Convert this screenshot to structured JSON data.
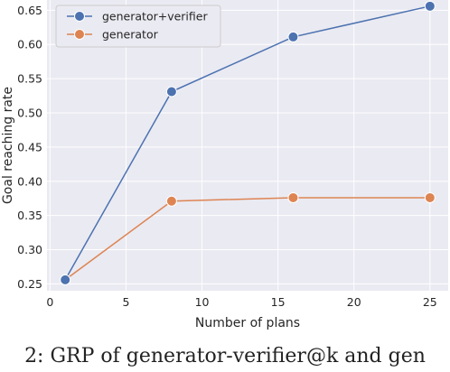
{
  "chart_data": {
    "type": "line",
    "title": "",
    "xlabel": "Number of plans",
    "ylabel": "Goal reaching rate",
    "xlim": [
      -0.2,
      26.2
    ],
    "ylim": [
      0.24,
      0.665
    ],
    "xticks": [
      0,
      5,
      10,
      15,
      20,
      25
    ],
    "yticks": [
      0.25,
      0.3,
      0.35,
      0.4,
      0.45,
      0.5,
      0.55,
      0.6,
      0.65
    ],
    "ytick_labels": [
      "0.25",
      "0.30",
      "0.35",
      "0.40",
      "0.45",
      "0.50",
      "0.55",
      "0.60",
      "0.65"
    ],
    "grid": true,
    "legend_position": "top-left",
    "series": [
      {
        "name": "generator+verifier",
        "color": "#4c72b0",
        "x": [
          1,
          8,
          16,
          25
        ],
        "y": [
          0.256,
          0.531,
          0.611,
          0.656
        ]
      },
      {
        "name": "generator",
        "color": "#dd8452",
        "x": [
          1,
          8,
          16,
          25
        ],
        "y": [
          0.256,
          0.371,
          0.376,
          0.376
        ]
      }
    ]
  },
  "caption": {
    "text": "2: GRP of generator-verifier@k and gen"
  }
}
